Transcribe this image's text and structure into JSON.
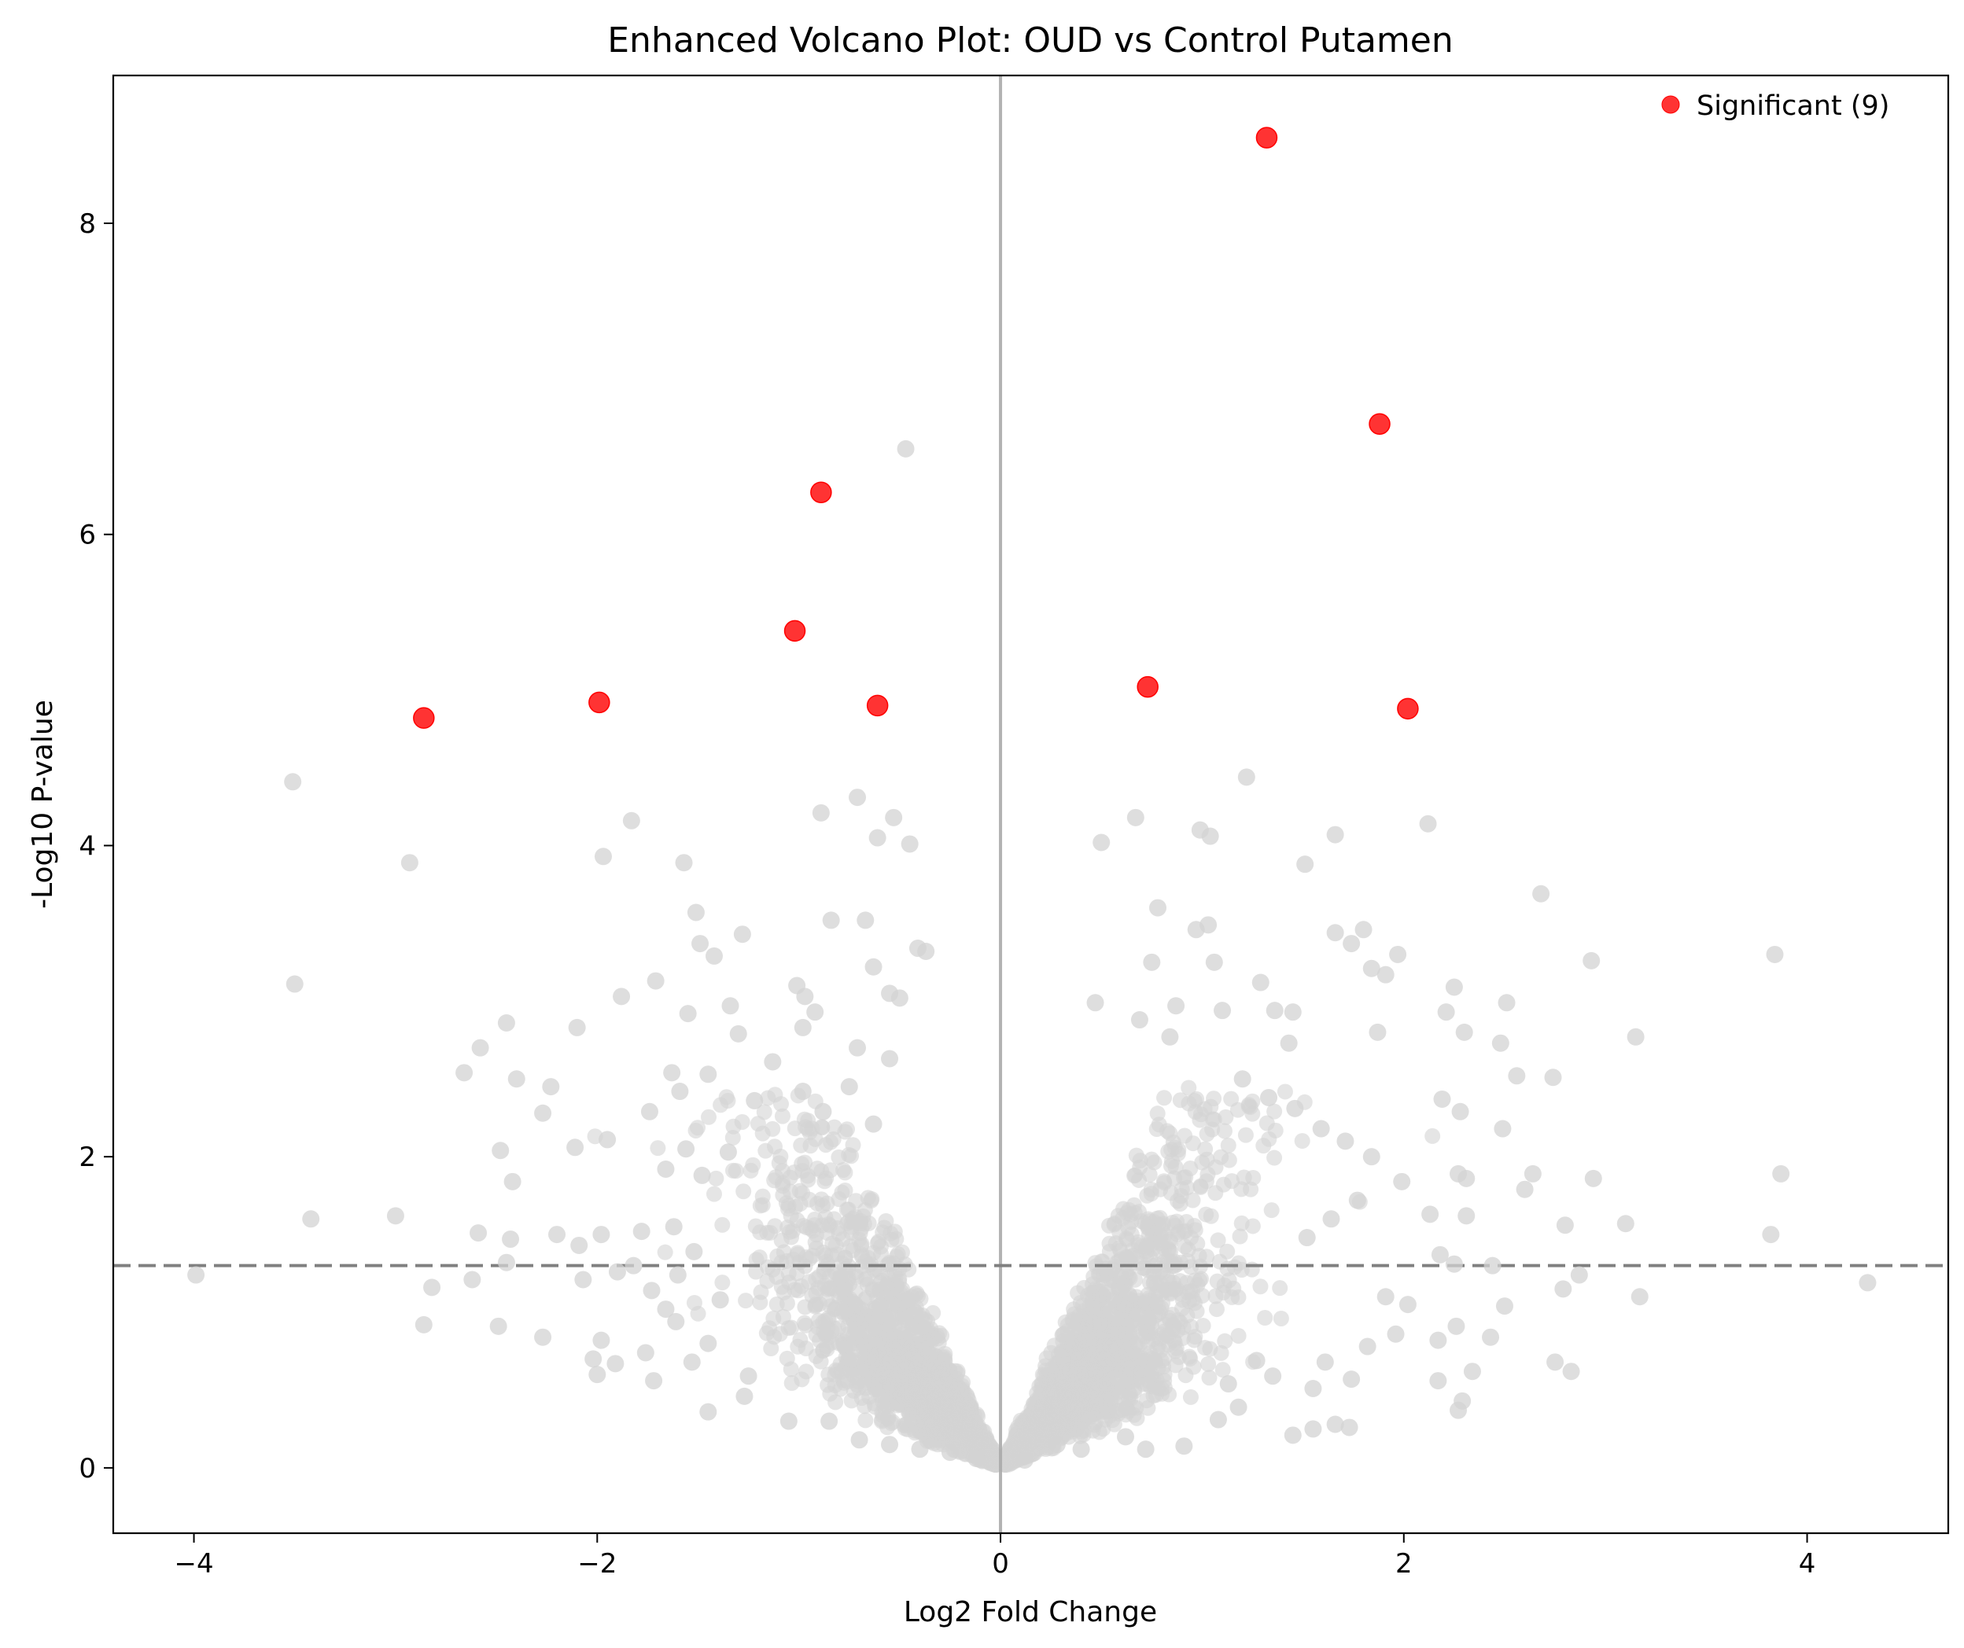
{
  "chart_data": {
    "type": "scatter",
    "title": "Enhanced Volcano Plot: OUD vs Control Putamen",
    "xlabel": "Log2 Fold Change",
    "ylabel": "-Log10 P-value",
    "xlim": [
      -4.4,
      4.7
    ],
    "ylim": [
      -0.42,
      8.95
    ],
    "xticks": [
      -4,
      -2,
      0,
      2,
      4
    ],
    "yticks": [
      0,
      2,
      4,
      6,
      8
    ],
    "xtick_labels": [
      "−4",
      "−2",
      "0",
      "2",
      "4"
    ],
    "ytick_labels": [
      "0",
      "2",
      "4",
      "6",
      "8"
    ],
    "grid": false,
    "legend": {
      "placement": "top-right",
      "entries": [
        "Significant (9)"
      ]
    },
    "reference_lines": {
      "vertical_x": 0,
      "horizontal_y": 1.3
    },
    "colors": {
      "significant": "#ff0000",
      "nonsignificant": "#d3d3d3",
      "vline": "#aaaaaa",
      "hline": "#808080"
    },
    "series": [
      {
        "name": "Significant (9)",
        "points": [
          [
            1.32,
            8.55
          ],
          [
            1.88,
            6.71
          ],
          [
            -0.89,
            6.27
          ],
          [
            -1.02,
            5.38
          ],
          [
            0.73,
            5.02
          ],
          [
            -1.99,
            4.92
          ],
          [
            -0.61,
            4.9
          ],
          [
            2.02,
            4.88
          ],
          [
            -2.86,
            4.82
          ]
        ]
      },
      {
        "points": [
          [
            -0.47,
            6.55
          ],
          [
            1.22,
            4.44
          ],
          [
            -3.51,
            4.41
          ],
          [
            -0.71,
            4.31
          ],
          [
            -0.89,
            4.21
          ],
          [
            -0.53,
            4.18
          ],
          [
            -1.83,
            4.16
          ],
          [
            0.67,
            4.18
          ],
          [
            2.12,
            4.14
          ],
          [
            0.99,
            4.1
          ],
          [
            1.04,
            4.06
          ],
          [
            1.66,
            4.07
          ],
          [
            -0.61,
            4.05
          ],
          [
            -0.45,
            4.01
          ],
          [
            0.5,
            4.02
          ],
          [
            -1.97,
            3.93
          ],
          [
            -2.93,
            3.89
          ],
          [
            -1.57,
            3.89
          ],
          [
            1.51,
            3.88
          ],
          [
            2.68,
            3.69
          ],
          [
            0.78,
            3.6
          ],
          [
            -1.51,
            3.57
          ],
          [
            -0.67,
            3.52
          ],
          [
            -0.84,
            3.52
          ],
          [
            0.97,
            3.46
          ],
          [
            1.03,
            3.49
          ],
          [
            1.8,
            3.46
          ],
          [
            1.66,
            3.44
          ],
          [
            -1.28,
            3.43
          ],
          [
            -1.49,
            3.37
          ],
          [
            1.74,
            3.37
          ],
          [
            -0.41,
            3.34
          ],
          [
            -0.37,
            3.32
          ],
          [
            1.97,
            3.3
          ],
          [
            3.84,
            3.3
          ],
          [
            -1.42,
            3.29
          ],
          [
            0.75,
            3.25
          ],
          [
            1.06,
            3.25
          ],
          [
            -0.63,
            3.22
          ],
          [
            2.93,
            3.26
          ],
          [
            1.91,
            3.17
          ],
          [
            1.84,
            3.21
          ],
          [
            -3.5,
            3.11
          ],
          [
            -1.71,
            3.13
          ],
          [
            -1.01,
            3.1
          ],
          [
            1.29,
            3.12
          ],
          [
            2.25,
            3.09
          ],
          [
            -0.55,
            3.05
          ],
          [
            -0.5,
            3.02
          ],
          [
            -0.97,
            3.03
          ],
          [
            2.51,
            2.99
          ],
          [
            0.47,
            2.99
          ],
          [
            1.36,
            2.94
          ],
          [
            -1.34,
            2.97
          ],
          [
            -0.92,
            2.93
          ],
          [
            0.69,
            2.88
          ],
          [
            0.87,
            2.97
          ],
          [
            1.1,
            2.94
          ],
          [
            1.45,
            2.93
          ],
          [
            2.21,
            2.93
          ],
          [
            -2.45,
            2.86
          ],
          [
            -2.1,
            2.83
          ],
          [
            -1.88,
            3.03
          ],
          [
            -1.55,
            2.92
          ],
          [
            3.15,
            2.77
          ],
          [
            2.3,
            2.8
          ],
          [
            2.48,
            2.73
          ],
          [
            1.87,
            2.8
          ],
          [
            1.43,
            2.73
          ],
          [
            0.84,
            2.77
          ],
          [
            -1.3,
            2.79
          ],
          [
            -0.98,
            2.83
          ],
          [
            -0.71,
            2.7
          ],
          [
            -2.58,
            2.7
          ],
          [
            -2.66,
            2.54
          ],
          [
            -2.4,
            2.5
          ],
          [
            -2.27,
            2.28
          ],
          [
            -2.11,
            2.06
          ],
          [
            -2.23,
            2.45
          ],
          [
            -2.48,
            2.04
          ],
          [
            -2.42,
            1.84
          ],
          [
            -1.95,
            2.11
          ],
          [
            -3.42,
            1.6
          ],
          [
            -3.0,
            1.62
          ],
          [
            -2.59,
            1.51
          ],
          [
            -2.43,
            1.47
          ],
          [
            -2.2,
            1.5
          ],
          [
            -2.09,
            1.43
          ],
          [
            -1.98,
            1.5
          ],
          [
            -1.78,
            1.52
          ],
          [
            -1.9,
            1.26
          ],
          [
            -2.07,
            1.21
          ],
          [
            -2.82,
            1.16
          ],
          [
            -2.62,
            1.21
          ],
          [
            -2.45,
            1.32
          ],
          [
            -3.99,
            1.24
          ],
          [
            -2.86,
            0.92
          ],
          [
            -2.49,
            0.91
          ],
          [
            -2.27,
            0.84
          ],
          [
            -1.98,
            0.82
          ],
          [
            -2.02,
            0.7
          ],
          [
            -1.91,
            0.67
          ],
          [
            -1.76,
            0.74
          ],
          [
            -1.72,
            0.56
          ],
          [
            -2.0,
            0.6
          ],
          [
            -1.45,
            0.36
          ],
          [
            -1.27,
            0.46
          ],
          [
            -1.25,
            0.59
          ],
          [
            -1.05,
            0.3
          ],
          [
            -0.85,
            0.3
          ],
          [
            2.74,
            2.51
          ],
          [
            2.56,
            2.52
          ],
          [
            2.19,
            2.37
          ],
          [
            2.28,
            2.29
          ],
          [
            2.49,
            2.18
          ],
          [
            2.64,
            1.89
          ],
          [
            2.6,
            1.79
          ],
          [
            2.94,
            1.86
          ],
          [
            2.27,
            1.89
          ],
          [
            2.31,
            1.86
          ],
          [
            2.13,
            1.63
          ],
          [
            2.31,
            1.62
          ],
          [
            2.18,
            1.37
          ],
          [
            2.25,
            1.31
          ],
          [
            2.44,
            1.3
          ],
          [
            2.8,
            1.56
          ],
          [
            3.1,
            1.57
          ],
          [
            3.82,
            1.5
          ],
          [
            3.87,
            1.89
          ],
          [
            4.3,
            1.19
          ],
          [
            3.17,
            1.1
          ],
          [
            2.87,
            1.24
          ],
          [
            2.79,
            1.15
          ],
          [
            2.5,
            1.04
          ],
          [
            2.26,
            0.91
          ],
          [
            2.43,
            0.84
          ],
          [
            2.17,
            0.82
          ],
          [
            2.75,
            0.68
          ],
          [
            2.83,
            0.62
          ],
          [
            2.34,
            0.62
          ],
          [
            2.17,
            0.56
          ],
          [
            2.29,
            0.43
          ],
          [
            2.27,
            0.37
          ],
          [
            1.73,
            0.26
          ],
          [
            1.66,
            0.28
          ],
          [
            1.55,
            0.25
          ],
          [
            1.45,
            0.21
          ],
          [
            1.18,
            0.39
          ],
          [
            1.08,
            0.31
          ],
          [
            0.91,
            0.14
          ],
          [
            0.72,
            0.12
          ],
          [
            0.62,
            0.2
          ],
          [
            0.28,
            0.15
          ],
          [
            0.12,
            0.05
          ],
          [
            -0.12,
            0.06
          ],
          [
            -0.25,
            0.1
          ],
          [
            -0.4,
            0.12
          ],
          [
            -0.55,
            0.15
          ],
          [
            -0.7,
            0.18
          ],
          [
            0.4,
            0.12
          ],
          [
            1.91,
            1.1
          ],
          [
            1.96,
            0.86
          ],
          [
            2.02,
            1.05
          ],
          [
            1.82,
            0.78
          ],
          [
            1.74,
            0.57
          ],
          [
            1.61,
            0.68
          ],
          [
            1.55,
            0.51
          ],
          [
            1.35,
            0.59
          ],
          [
            1.27,
            0.69
          ],
          [
            1.13,
            0.54
          ],
          [
            -1.53,
            0.68
          ],
          [
            -1.61,
            0.94
          ],
          [
            -1.45,
            0.8
          ],
          [
            -1.39,
            1.08
          ],
          [
            -1.6,
            1.24
          ],
          [
            -1.73,
            1.14
          ],
          [
            -1.66,
            1.02
          ],
          [
            -1.82,
            1.3
          ],
          [
            -1.52,
            1.39
          ],
          [
            -1.62,
            1.55
          ],
          [
            -1.66,
            1.92
          ],
          [
            -1.48,
            1.88
          ],
          [
            -1.35,
            2.03
          ],
          [
            -1.56,
            2.05
          ],
          [
            -1.74,
            2.29
          ],
          [
            -1.59,
            2.42
          ],
          [
            -1.63,
            2.54
          ],
          [
            -1.45,
            2.53
          ],
          [
            -1.22,
            2.36
          ],
          [
            -1.13,
            2.61
          ],
          [
            -0.98,
            2.42
          ],
          [
            -0.88,
            2.29
          ],
          [
            -0.75,
            2.45
          ],
          [
            -0.63,
            2.21
          ],
          [
            -0.55,
            2.63
          ],
          [
            1.2,
            2.5
          ],
          [
            1.33,
            2.38
          ],
          [
            1.46,
            2.31
          ],
          [
            1.59,
            2.18
          ],
          [
            1.71,
            2.1
          ],
          [
            1.84,
            2.0
          ],
          [
            1.99,
            1.84
          ],
          [
            1.77,
            1.72
          ],
          [
            1.64,
            1.6
          ],
          [
            1.52,
            1.48
          ]
        ]
      }
    ]
  }
}
